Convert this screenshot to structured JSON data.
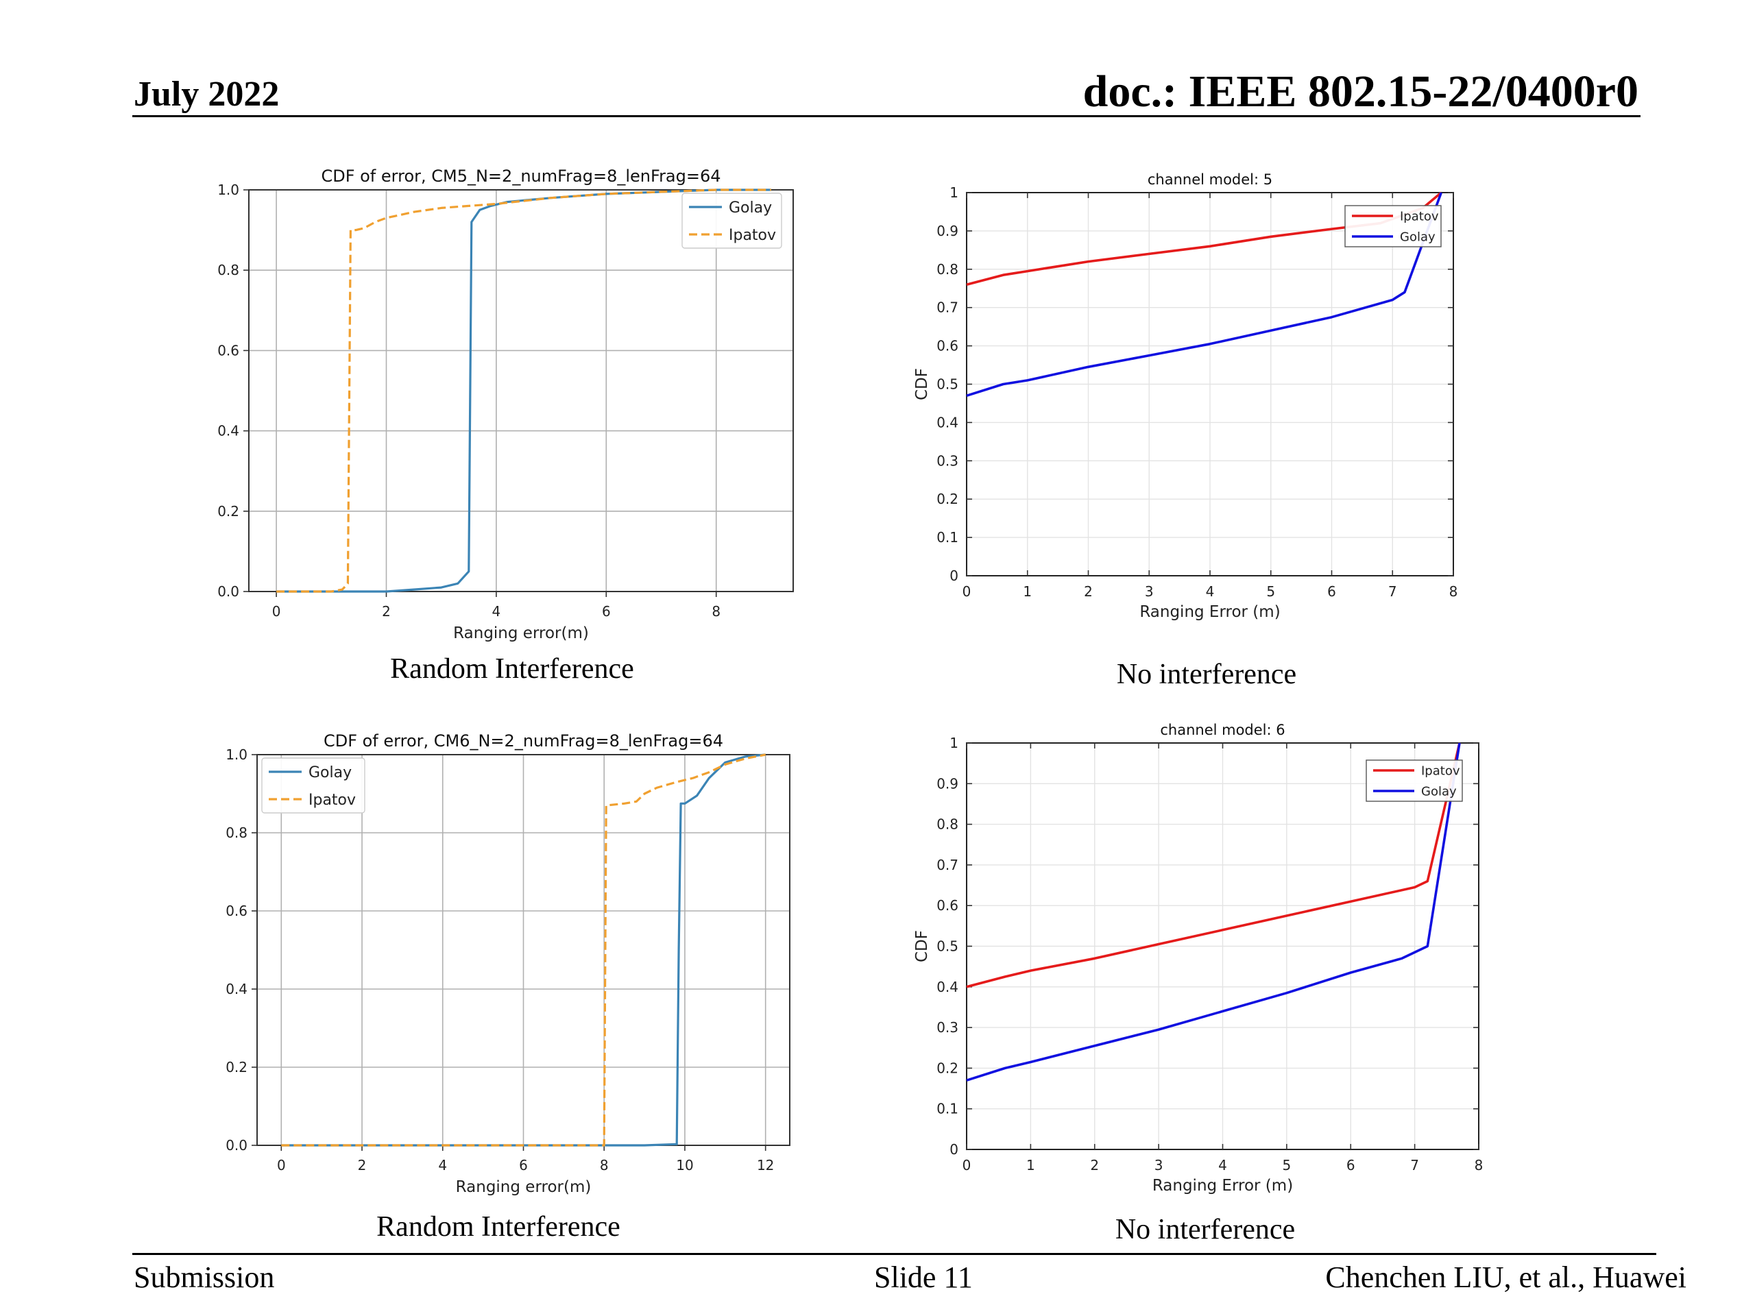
{
  "header": {
    "date": "July 2022",
    "doc": "doc.: IEEE 802.15-22/0400r0"
  },
  "footer": {
    "left": "Submission",
    "center": "Slide 11",
    "right": "Chenchen LIU, et al., Huawei"
  },
  "colors": {
    "golay_py": "#3b84b5",
    "ipatov_py": "#f0a030",
    "ipatov_ml": "#e51b1b",
    "golay_ml": "#1010e0"
  },
  "chart_data": [
    {
      "type": "line",
      "title": "CDF of error, CM5_N=2_numFrag=8_lenFrag=64",
      "xlabel": "Ranging error(m)",
      "ylabel": "",
      "caption": "Random Interference",
      "xlim": [
        -0.5,
        9.4
      ],
      "ylim": [
        0,
        1.0
      ],
      "xticks": [
        0,
        2,
        4,
        6,
        8
      ],
      "xtick_labels": [
        "0",
        "2",
        "4",
        "6",
        "8"
      ],
      "yticks": [
        0,
        0.2,
        0.4,
        0.6,
        0.8,
        1.0
      ],
      "ytick_labels": [
        "0.0",
        "0.2",
        "0.4",
        "0.6",
        "0.8",
        "1.0"
      ],
      "grid": true,
      "legend": "top-right",
      "series": [
        {
          "name": "Golay",
          "style": "solid",
          "color": "#3b84b5",
          "x": [
            0,
            1.0,
            2.0,
            2.5,
            3.0,
            3.3,
            3.5,
            3.55,
            3.6,
            3.7,
            3.9,
            4.2,
            4.6,
            5.0,
            6.0,
            7.0,
            8.0,
            9.0
          ],
          "y": [
            0,
            0.0,
            0.0,
            0.005,
            0.01,
            0.02,
            0.05,
            0.92,
            0.93,
            0.95,
            0.96,
            0.97,
            0.975,
            0.98,
            0.99,
            0.995,
            1.0,
            1.0
          ]
        },
        {
          "name": "Ipatov",
          "style": "dashed",
          "color": "#f0a030",
          "x": [
            0,
            1.0,
            1.2,
            1.3,
            1.35,
            1.45,
            1.6,
            1.8,
            2.0,
            2.5,
            3.0,
            3.5,
            4.0,
            5.0,
            6.0,
            7.0,
            8.0,
            9.0
          ],
          "y": [
            0,
            0.0,
            0.005,
            0.02,
            0.9,
            0.9,
            0.905,
            0.92,
            0.93,
            0.945,
            0.955,
            0.96,
            0.965,
            0.98,
            0.99,
            0.995,
            1.0,
            1.0
          ]
        }
      ]
    },
    {
      "type": "line",
      "title": "channel model: 5",
      "xlabel": "Ranging Error (m)",
      "ylabel": "CDF",
      "caption": "No interference",
      "xlim": [
        0,
        8
      ],
      "ylim": [
        0,
        1
      ],
      "xticks": [
        0,
        1,
        2,
        3,
        4,
        5,
        6,
        7,
        8
      ],
      "xtick_labels": [
        "0",
        "1",
        "2",
        "3",
        "4",
        "5",
        "6",
        "7",
        "8"
      ],
      "yticks": [
        0,
        0.1,
        0.2,
        0.3,
        0.4,
        0.5,
        0.6,
        0.7,
        0.8,
        0.9,
        1
      ],
      "ytick_labels": [
        "0",
        "0.1",
        "0.2",
        "0.3",
        "0.4",
        "0.5",
        "0.6",
        "0.7",
        "0.8",
        "0.9",
        "1"
      ],
      "grid": true,
      "legend": "top-right",
      "series": [
        {
          "name": "Ipatov",
          "style": "solid",
          "color": "#e51b1b",
          "x": [
            0,
            0.6,
            1,
            2,
            3,
            4,
            5,
            6,
            6.8,
            7.5,
            7.8
          ],
          "y": [
            0.76,
            0.785,
            0.795,
            0.82,
            0.84,
            0.86,
            0.885,
            0.905,
            0.92,
            0.96,
            1.0
          ]
        },
        {
          "name": "Golay",
          "style": "solid",
          "color": "#1010e0",
          "x": [
            0,
            0.6,
            1,
            2,
            3,
            4,
            5,
            6,
            7,
            7.2,
            7.8
          ],
          "y": [
            0.47,
            0.5,
            0.51,
            0.545,
            0.575,
            0.605,
            0.64,
            0.675,
            0.72,
            0.74,
            1.0
          ]
        }
      ]
    },
    {
      "type": "line",
      "title": "CDF of error, CM6_N=2_numFrag=8_lenFrag=64",
      "xlabel": "Ranging error(m)",
      "ylabel": "",
      "caption": "Random Interference",
      "xlim": [
        -0.6,
        12.6
      ],
      "ylim": [
        0,
        1.0
      ],
      "xticks": [
        0,
        2,
        4,
        6,
        8,
        10,
        12
      ],
      "xtick_labels": [
        "0",
        "2",
        "4",
        "6",
        "8",
        "10",
        "12"
      ],
      "yticks": [
        0,
        0.2,
        0.4,
        0.6,
        0.8,
        1.0
      ],
      "ytick_labels": [
        "0.0",
        "0.2",
        "0.4",
        "0.6",
        "0.8",
        "1.0"
      ],
      "grid": true,
      "legend": "top-left",
      "series": [
        {
          "name": "Golay",
          "style": "solid",
          "color": "#3b84b5",
          "x": [
            0,
            2,
            4,
            6,
            8,
            9,
            9.8,
            9.85,
            9.9,
            10.0,
            10.3,
            10.6,
            11.0,
            11.5,
            12.0
          ],
          "y": [
            0,
            0,
            0,
            0,
            0,
            0.0,
            0.003,
            0.5,
            0.875,
            0.875,
            0.895,
            0.94,
            0.98,
            0.995,
            1.0
          ]
        },
        {
          "name": "Ipatov",
          "style": "dashed",
          "color": "#f0a030",
          "x": [
            0,
            2,
            4,
            6,
            7.9,
            8.0,
            8.05,
            8.5,
            8.8,
            9.0,
            9.3,
            9.8,
            10.2,
            10.6,
            11.0,
            11.5,
            12.0
          ],
          "y": [
            0,
            0,
            0,
            0,
            0.0,
            0.0,
            0.87,
            0.875,
            0.88,
            0.9,
            0.915,
            0.93,
            0.94,
            0.955,
            0.975,
            0.99,
            1.0
          ]
        }
      ]
    },
    {
      "type": "line",
      "title": "channel model: 6",
      "xlabel": "Ranging Error (m)",
      "ylabel": "CDF",
      "caption": "No interference",
      "xlim": [
        0,
        8
      ],
      "ylim": [
        0,
        1
      ],
      "xticks": [
        0,
        1,
        2,
        3,
        4,
        5,
        6,
        7,
        8
      ],
      "xtick_labels": [
        "0",
        "1",
        "2",
        "3",
        "4",
        "5",
        "6",
        "7",
        "8"
      ],
      "yticks": [
        0,
        0.1,
        0.2,
        0.3,
        0.4,
        0.5,
        0.6,
        0.7,
        0.8,
        0.9,
        1
      ],
      "ytick_labels": [
        "0",
        "0.1",
        "0.2",
        "0.3",
        "0.4",
        "0.5",
        "0.6",
        "0.7",
        "0.8",
        "0.9",
        "1"
      ],
      "grid": true,
      "legend": "top-right",
      "series": [
        {
          "name": "Ipatov",
          "style": "solid",
          "color": "#e51b1b",
          "x": [
            0,
            0.6,
            1,
            2,
            3,
            4,
            5,
            6,
            7,
            7.2,
            7.7
          ],
          "y": [
            0.4,
            0.425,
            0.44,
            0.47,
            0.505,
            0.54,
            0.575,
            0.61,
            0.645,
            0.66,
            1.0
          ]
        },
        {
          "name": "Golay",
          "style": "solid",
          "color": "#1010e0",
          "x": [
            0,
            0.6,
            1,
            2,
            3,
            4,
            5,
            6,
            6.8,
            7.2,
            7.7
          ],
          "y": [
            0.17,
            0.2,
            0.215,
            0.255,
            0.295,
            0.34,
            0.385,
            0.435,
            0.47,
            0.5,
            1.0
          ]
        }
      ]
    }
  ]
}
